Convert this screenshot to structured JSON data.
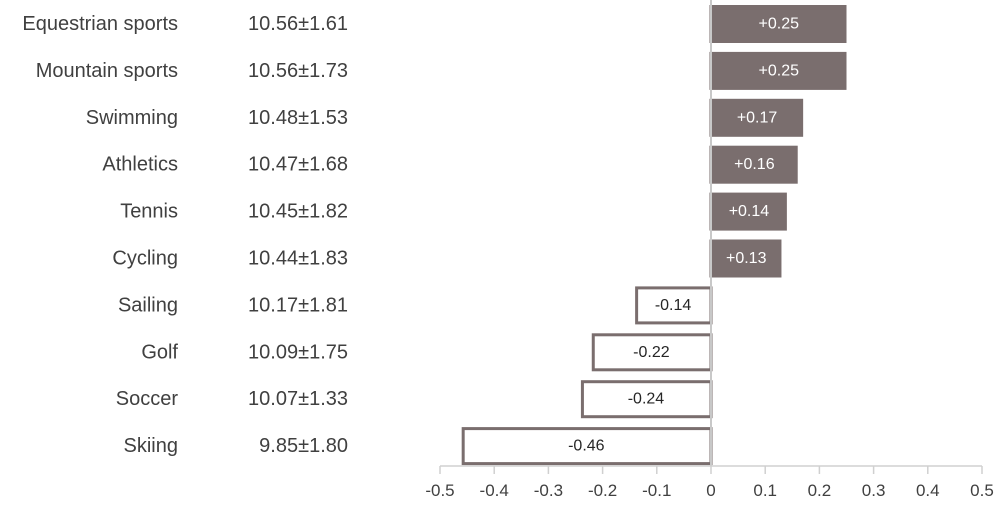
{
  "chart_data": {
    "type": "bar",
    "orientation": "horizontal",
    "categories": [
      "Equestrian sports",
      "Mountain sports",
      "Swimming",
      "Athletics",
      "Tennis",
      "Cycling",
      "Sailing",
      "Golf",
      "Soccer",
      "Skiing"
    ],
    "category_values": [
      "10.56±1.61",
      "10.56±1.73",
      "10.48±1.53",
      "10.47±1.68",
      "10.45±1.82",
      "10.44±1.83",
      "10.17±1.81",
      "10.09±1.75",
      "10.07±1.33",
      "9.85±1.80"
    ],
    "values": [
      0.25,
      0.25,
      0.17,
      0.16,
      0.14,
      0.13,
      -0.14,
      -0.22,
      -0.24,
      -0.46
    ],
    "data_labels": [
      "+0.25",
      "+0.25",
      "+0.17",
      "+0.16",
      "+0.14",
      "+0.13",
      "-0.14",
      "-0.22",
      "-0.24",
      "-0.46"
    ],
    "xlim": [
      -0.5,
      0.5
    ],
    "x_ticks": [
      "-0.5",
      "-0.4",
      "-0.3",
      "-0.2",
      "-0.1",
      "0",
      "0.1",
      "0.2",
      "0.3",
      "0.4",
      "0.5"
    ],
    "grid": false,
    "colors": {
      "positive_fill": "#7a6e6e",
      "negative_fill": "#ffffff",
      "bar_border": "#7a6e6e",
      "axis": "#d0d0d0",
      "zero_line": "#c8c8c8",
      "text": "#404040"
    }
  }
}
